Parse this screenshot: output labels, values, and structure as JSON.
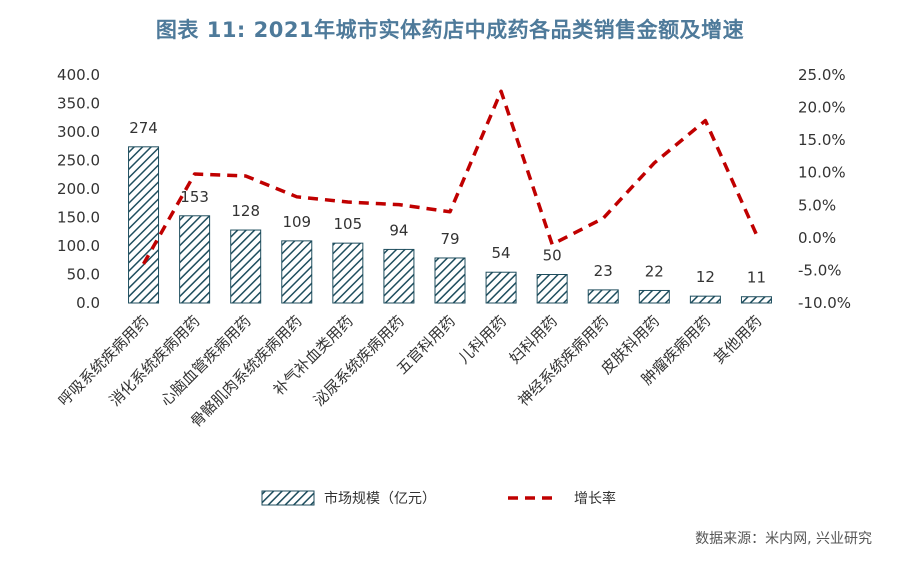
{
  "title": "图表 11: 2021年城市实体药店中成药各品类销售金额及增速",
  "source": "数据来源：米内网, 兴业研究",
  "colors": {
    "bar_stroke": "#1f4e5e",
    "hatch": "#1f4e5e",
    "line": "#c00000",
    "title": "#4e7a9a"
  },
  "chart_data": {
    "type": "bar",
    "categories": [
      "呼吸系统疾病用药",
      "消化系统疾病用药",
      "心脑血管疾病用药",
      "骨骼肌肉系统疾病用药",
      "补气补血类用药",
      "泌尿系统疾病用药",
      "五官科用药",
      "儿科用药",
      "妇科用药",
      "神经系统疾病用药",
      "皮肤科用药",
      "肿瘤疾病用药",
      "其他用药"
    ],
    "series": [
      {
        "name": "市场规模（亿元）",
        "type": "bar",
        "axis": "left",
        "values": [
          274,
          153,
          128,
          109,
          105,
          94,
          79,
          54,
          50,
          23,
          22,
          12,
          11
        ],
        "labels": [
          "274",
          "153",
          "128",
          "109",
          "105",
          "94",
          "79",
          "54",
          "50",
          "23",
          "22",
          "12",
          "11"
        ]
      },
      {
        "name": "增长率",
        "type": "line",
        "axis": "right",
        "style": "dashed",
        "values": [
          -4.0,
          9.8,
          9.5,
          6.3,
          5.5,
          5.1,
          4.0,
          22.5,
          -1.0,
          3.0,
          11.5,
          18.0,
          0.5
        ]
      }
    ],
    "left_axis": {
      "min": 0,
      "max": 400,
      "step": 50,
      "tick_labels": [
        "0.0",
        "50.0",
        "100.0",
        "150.0",
        "200.0",
        "250.0",
        "300.0",
        "350.0",
        "400.0"
      ]
    },
    "right_axis": {
      "min": -10,
      "max": 25,
      "step": 5,
      "unit": "%",
      "tick_labels": [
        "-10.0%",
        "-5.0%",
        "0.0%",
        "5.0%",
        "10.0%",
        "15.0%",
        "20.0%",
        "25.0%"
      ]
    },
    "legend_position": "bottom",
    "grid": false
  }
}
